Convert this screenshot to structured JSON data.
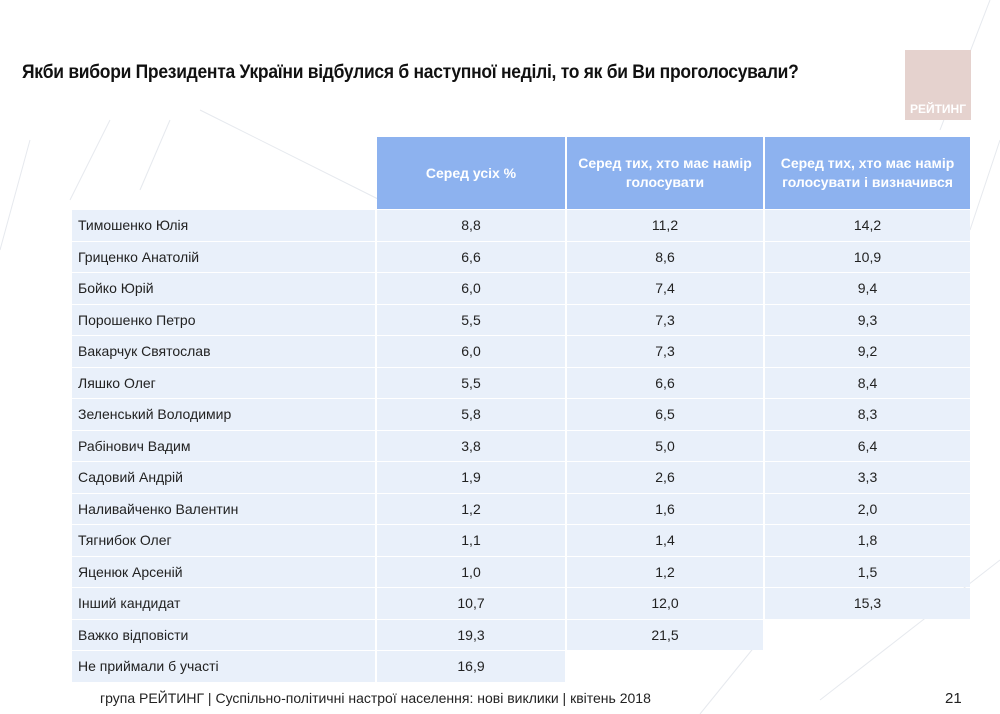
{
  "title": "Якби вибори Президента України відбулися б наступної неділі, то як би Ви проголосували?",
  "logo_text": "РЕЙТИНГ",
  "table": {
    "headers": [
      "Серед усіх %",
      "Серед тих, хто має намір голосувати",
      "Серед тих, хто має намір голосувати і визначився"
    ],
    "rows": [
      {
        "name": "Тимошенко Юлія",
        "v": [
          "8,8",
          "11,2",
          "14,2"
        ]
      },
      {
        "name": "Гриценко Анатолій",
        "v": [
          "6,6",
          "8,6",
          "10,9"
        ]
      },
      {
        "name": "Бойко Юрій",
        "v": [
          "6,0",
          "7,4",
          "9,4"
        ]
      },
      {
        "name": "Порошенко Петро",
        "v": [
          "5,5",
          "7,3",
          "9,3"
        ]
      },
      {
        "name": "Вакарчук Святослав",
        "v": [
          "6,0",
          "7,3",
          "9,2"
        ]
      },
      {
        "name": "Ляшко Олег",
        "v": [
          "5,5",
          "6,6",
          "8,4"
        ]
      },
      {
        "name": "Зеленський Володимир",
        "v": [
          "5,8",
          "6,5",
          "8,3"
        ]
      },
      {
        "name": "Рабінович Вадим",
        "v": [
          "3,8",
          "5,0",
          "6,4"
        ]
      },
      {
        "name": "Садовий Андрій",
        "v": [
          "1,9",
          "2,6",
          "3,3"
        ]
      },
      {
        "name": "Наливайченко Валентин",
        "v": [
          "1,2",
          "1,6",
          "2,0"
        ]
      },
      {
        "name": "Тягнибок Олег",
        "v": [
          "1,1",
          "1,4",
          "1,8"
        ]
      },
      {
        "name": "Яценюк Арсеній",
        "v": [
          "1,0",
          "1,2",
          "1,5"
        ]
      },
      {
        "name": "Інший кандидат",
        "v": [
          "10,7",
          "12,0",
          "15,3"
        ]
      },
      {
        "name": "Важко відповісти",
        "v": [
          "19,3",
          "21,5",
          null
        ]
      },
      {
        "name": "Не приймали б участі",
        "v": [
          "16,9",
          null,
          null
        ]
      }
    ]
  },
  "footer": "група РЕЙТИНГ  |  Суспільно-політичні настрої населення: нові виклики  |  квітень 2018",
  "page_number": "21",
  "colors": {
    "header": "#8db2ef",
    "row": "#e9f0fa",
    "logo": "#e5d2ce"
  }
}
